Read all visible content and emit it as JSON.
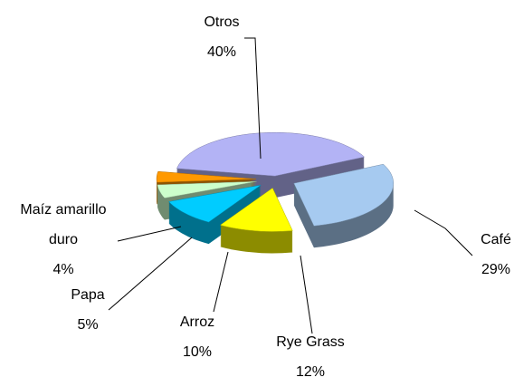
{
  "chart_data": {
    "type": "pie",
    "categories": [
      "Otros",
      "Café",
      "Rye Grass",
      "Arroz",
      "Papa",
      "Maíz amarillo duro"
    ],
    "values": [
      40,
      29,
      12,
      10,
      5,
      4
    ],
    "value_labels": [
      "40%",
      "29%",
      "12%",
      "10%",
      "5%",
      "4%"
    ],
    "colors": [
      "#b3b3f5",
      "#a6caf0",
      "#ffff00",
      "#00ccff",
      "#ccffcc",
      "#ff9900"
    ]
  }
}
